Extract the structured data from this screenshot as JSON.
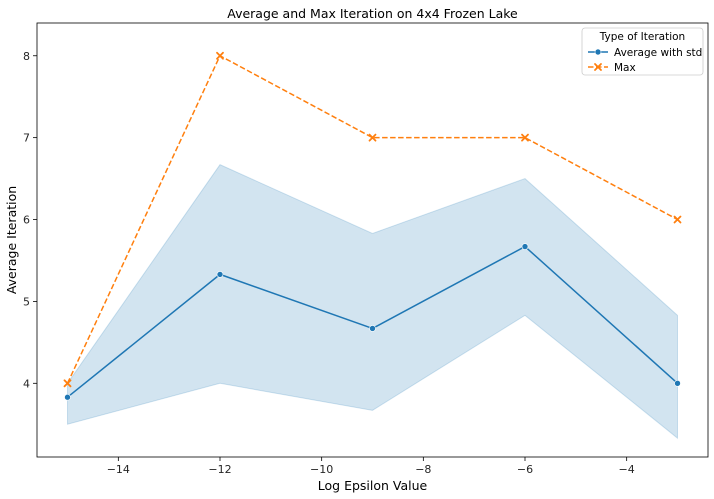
{
  "chart_data": {
    "type": "line",
    "title": "Average and Max Iteration on 4x4 Frozen Lake",
    "xlabel": "Log Epsilon Value",
    "ylabel": "Average Iteration",
    "xlim": [
      -15.6,
      -2.4
    ],
    "ylim": [
      3.1,
      8.4
    ],
    "xticks": [
      -14,
      -12,
      -10,
      -8,
      -6,
      -4
    ],
    "xtick_labels": [
      "−14",
      "−12",
      "−10",
      "−8",
      "−6",
      "−4"
    ],
    "yticks": [
      4,
      5,
      6,
      7,
      8
    ],
    "ytick_labels": [
      "4",
      "5",
      "6",
      "7",
      "8"
    ],
    "grid": false,
    "legend": {
      "title": "Type of Iteration",
      "position": "top-right",
      "entries": [
        "Average with std",
        "Max"
      ]
    },
    "x": [
      -15,
      -12,
      -9,
      -6,
      -3
    ],
    "series": [
      {
        "name": "Average with std",
        "values": [
          3.83,
          5.33,
          4.67,
          5.67,
          4.0
        ],
        "band_lower": [
          3.5,
          4.0,
          3.67,
          4.83,
          3.33
        ],
        "band_upper": [
          4.0,
          6.67,
          5.83,
          6.5,
          4.83
        ],
        "color": "#1f77b4",
        "marker": "circle",
        "linestyle": "solid"
      },
      {
        "name": "Max",
        "values": [
          4.0,
          8.0,
          7.0,
          7.0,
          6.0
        ],
        "color": "#ff7f0e",
        "marker": "x",
        "linestyle": "dashed"
      }
    ]
  }
}
